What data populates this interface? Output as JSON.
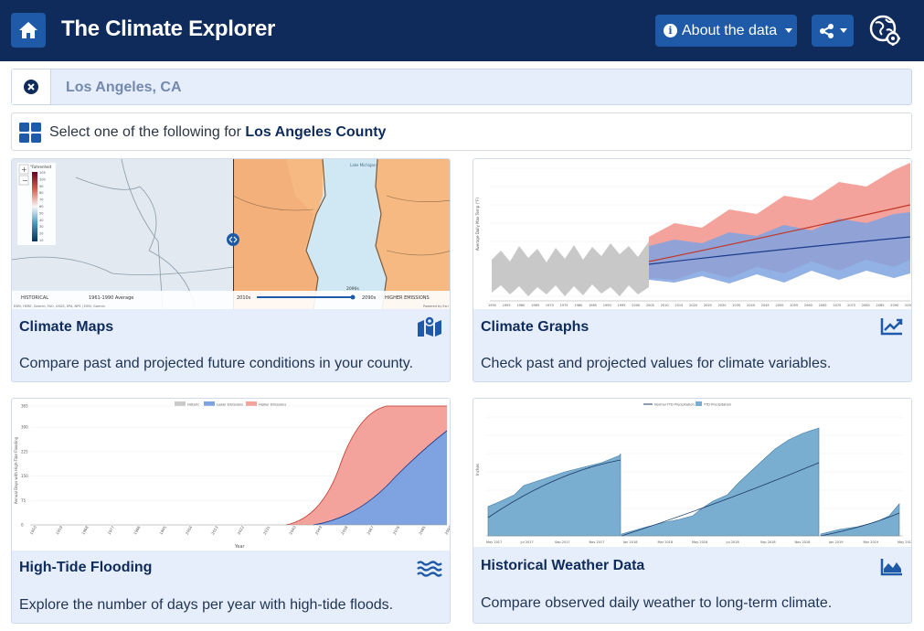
{
  "header": {
    "title": "The Climate Explorer",
    "about_label": "About the data"
  },
  "search": {
    "value": "Los Angeles, CA"
  },
  "selector": {
    "prefix": "Select one of the following for ",
    "county": "Los Angeles County"
  },
  "cards": [
    {
      "title": "Climate Maps",
      "description": "Compare past and projected future conditions in your county.",
      "icon": "map-icon"
    },
    {
      "title": "Climate Graphs",
      "description": "Check past and projected values for climate variables.",
      "icon": "line-chart-icon"
    },
    {
      "title": "High-Tide Flooding",
      "description": "Explore the number of days per year with high-tide floods.",
      "icon": "waves-icon"
    },
    {
      "title": "Historical Weather Data",
      "description": "Compare observed daily weather to long-term climate.",
      "icon": "area-chart-icon"
    }
  ],
  "map_preview": {
    "legend_title": "°Fahrenheit",
    "legend_values": [
      "105",
      "100",
      "90",
      "80",
      "70",
      "60",
      "50",
      "40",
      "30",
      "20",
      "10"
    ],
    "left_label": "HISTORICAL",
    "left_select": "1961-1990 Average",
    "year_left": "2010s",
    "year_right": "2090s",
    "slider_value": "2090s",
    "right_label": "HIGHER EMISSIONS",
    "lake_label": "Lake Michigan",
    "attribution_left": "ESRI, HERE, Garmin, FAO, USGS, EPA, NPS | ESRI, Garmin",
    "attribution_right": "Powered by Esri"
  },
  "graph_preview": {
    "years": [
      "1950",
      "1955",
      "1960",
      "1965",
      "1970",
      "1975",
      "1980",
      "1985",
      "1990",
      "1995",
      "2000",
      "2005",
      "2010",
      "2015",
      "2020",
      "2025",
      "2030",
      "2035",
      "2040",
      "2045",
      "2050",
      "2055",
      "2060",
      "2065",
      "2070",
      "2075",
      "2080",
      "2085",
      "2090",
      "2095"
    ],
    "ylabel": "Average Daily Max Temp (°F)"
  },
  "tide_preview": {
    "legend": [
      "Historic",
      "Lower Emissions",
      "Higher Emissions"
    ],
    "ylabel": "Annual Days with High-Tide Flooding",
    "xlabel": "Year",
    "yticks": [
      "0",
      "75",
      "150",
      "225",
      "300",
      "365"
    ],
    "xticks": [
      "1950",
      "1959",
      "1968",
      "1977",
      "1986",
      "1995",
      "2004",
      "2013",
      "2022",
      "2031",
      "2040",
      "2049",
      "2058",
      "2067",
      "2076",
      "2085",
      "2094"
    ]
  },
  "weather_preview": {
    "legend": [
      "Normal YTD Precipitation",
      "YTD Precipitation"
    ],
    "ylabel": "Inches",
    "xticks": [
      "May 2017",
      "Jul 2017",
      "Sep 2017",
      "Nov 2017",
      "Jan 2018",
      "Mar 2018",
      "May 2018",
      "Jul 2018",
      "Sep 2018",
      "Nov 2018",
      "Jan 2019",
      "Mar 2019",
      "May 2019"
    ]
  },
  "colors": {
    "navy": "#0e2b5c",
    "accent": "#1e5aa8",
    "card_bg": "#e7eefb",
    "higher_emissions": "#f4a29c",
    "lower_emissions": "#7fa3e0",
    "historic": "#c9c9c9",
    "weather_fill": "#7aaed0"
  }
}
